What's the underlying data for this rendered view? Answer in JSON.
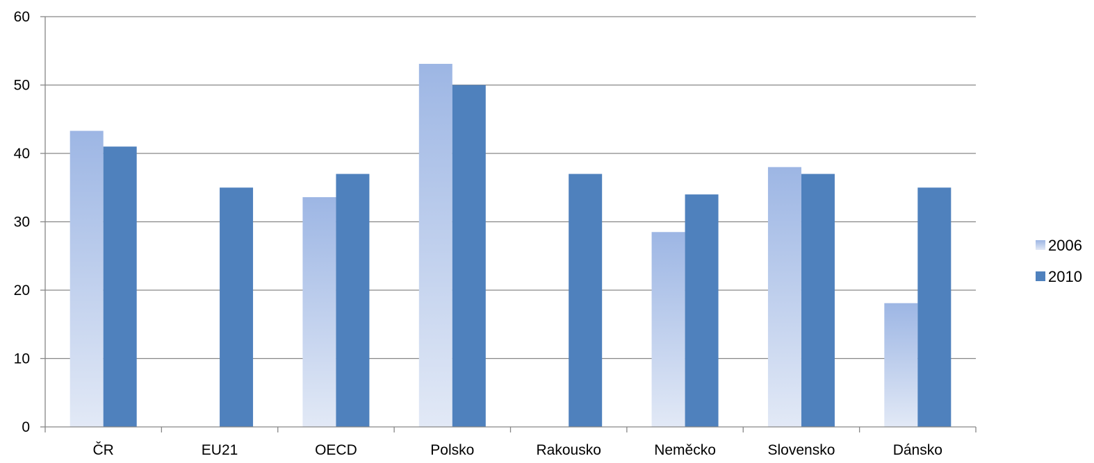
{
  "chart_data": {
    "type": "bar",
    "categories": [
      "ČR",
      "EU21",
      "OECD",
      "Polsko",
      "Rakousko",
      "Neměcko",
      "Slovensko",
      "Dánsko"
    ],
    "series": [
      {
        "name": "2006",
        "values": [
          43.3,
          null,
          33.6,
          53.1,
          null,
          28.5,
          38.0,
          18.1
        ],
        "color_top": "#9db6e4",
        "color_bottom": "#e2e9f6"
      },
      {
        "name": "2010",
        "values": [
          41.0,
          35.0,
          37.0,
          50.0,
          37.0,
          34.0,
          37.0,
          35.0
        ],
        "color": "#4f81bd"
      }
    ],
    "y_ticks": [
      "0",
      "10",
      "20",
      "30",
      "40",
      "50",
      "60"
    ],
    "ylim": [
      0,
      60
    ],
    "grid": true,
    "legend_position": "right",
    "gridline_color": "#868686",
    "axis_color": "#868686"
  }
}
